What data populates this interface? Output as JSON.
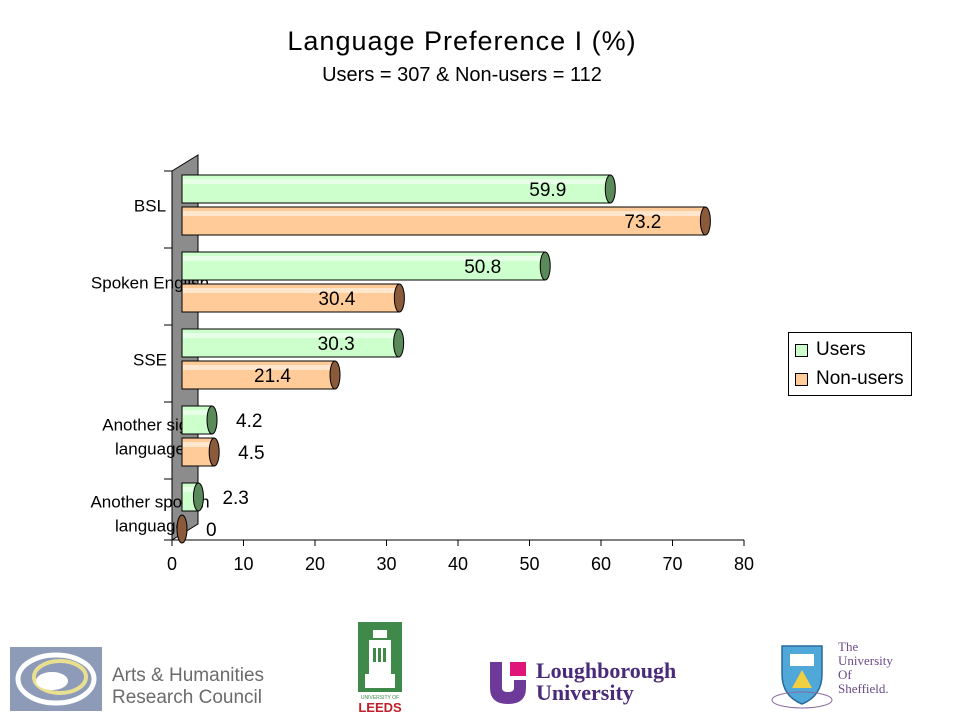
{
  "chart_data": {
    "type": "bar",
    "orientation": "horizontal",
    "title": "Language Preference I (%)",
    "subtitle": "Users = 307 & Non-users = 112",
    "categories": [
      "BSL",
      "Spoken English",
      "SSE",
      "Another sign language",
      "Another spoken language"
    ],
    "category_lines": [
      [
        "BSL"
      ],
      [
        "Spoken English"
      ],
      [
        "SSE"
      ],
      [
        "Another sign",
        "language"
      ],
      [
        "Another spoken",
        "language"
      ]
    ],
    "series": [
      {
        "name": "Users",
        "values": [
          59.9,
          50.8,
          30.3,
          4.2,
          2.3
        ],
        "labels": [
          "59.9",
          "50.8",
          "30.3",
          "4.2",
          "2.3"
        ],
        "color": "#ccffcc",
        "cap_color": "#5a8a5a"
      },
      {
        "name": "Non-users",
        "values": [
          73.2,
          30.4,
          21.4,
          4.5,
          0
        ],
        "labels": [
          "73.2",
          "30.4",
          "21.4",
          "4.5",
          "0"
        ],
        "color": "#ffcc99",
        "cap_color": "#8a5a3a"
      }
    ],
    "xlim": [
      0,
      80
    ],
    "xticks": [
      0,
      10,
      20,
      30,
      40,
      50,
      60,
      70,
      80
    ],
    "xticklabels": [
      "0",
      "10",
      "20",
      "30",
      "40",
      "50",
      "60",
      "70",
      "80"
    ],
    "grid": false,
    "legend": "right"
  },
  "logos": {
    "ahrc": {
      "line1": "Arts & Humanities",
      "line2": "Research Council"
    },
    "leeds": {
      "text": "LEEDS",
      "small": "UNIVERSITY OF"
    },
    "loughborough": {
      "line1": "Loughborough",
      "line2": "University"
    },
    "sheffield": {
      "line1": "The",
      "line2": "University",
      "line3": "Of",
      "line4": "Sheffield."
    }
  }
}
